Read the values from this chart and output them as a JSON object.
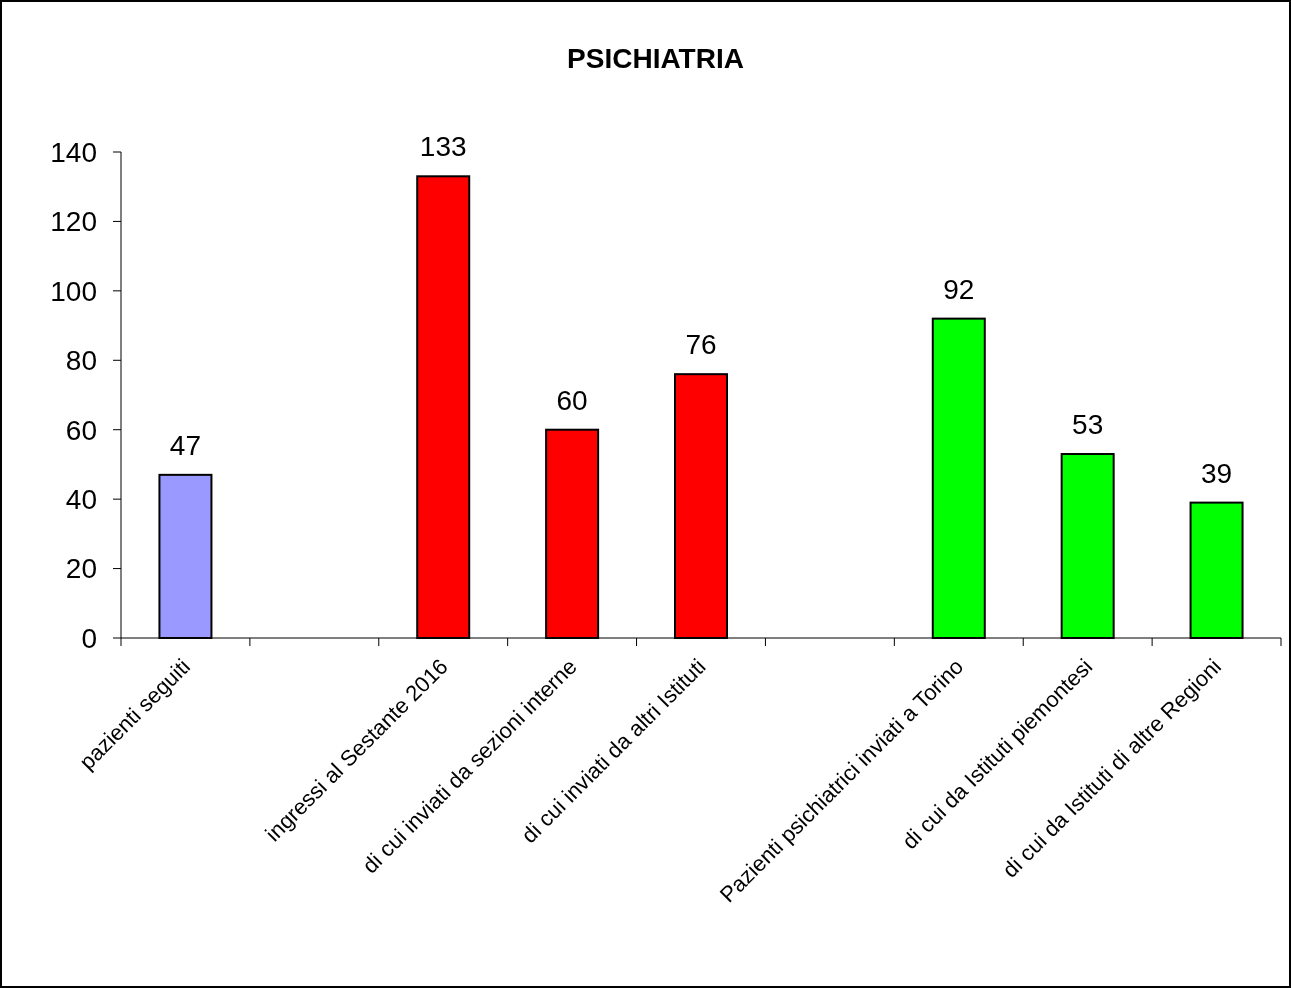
{
  "chart_data": {
    "type": "bar",
    "title": "PSICHIATRIA",
    "categories": [
      "pazienti seguiti",
      null,
      "ingressi al Sestante 2016",
      "di cui inviati da sezioni interne",
      "di cui inviati da altri Istituti",
      null,
      "Pazienti psichiatrici inviati a Torino",
      "di cui da Istituti piemontesi",
      "di cui da Istituti di altre Regioni"
    ],
    "values": [
      47,
      null,
      133,
      60,
      76,
      null,
      92,
      53,
      39
    ],
    "colors": [
      "#9999ff",
      null,
      "#ff0000",
      "#ff0000",
      "#ff0000",
      null,
      "#00ff00",
      "#00ff00",
      "#00ff00"
    ],
    "ylim": [
      0,
      140
    ],
    "yticks": [
      0,
      20,
      40,
      60,
      80,
      100,
      120,
      140
    ],
    "grid": false,
    "data_labels": true
  }
}
